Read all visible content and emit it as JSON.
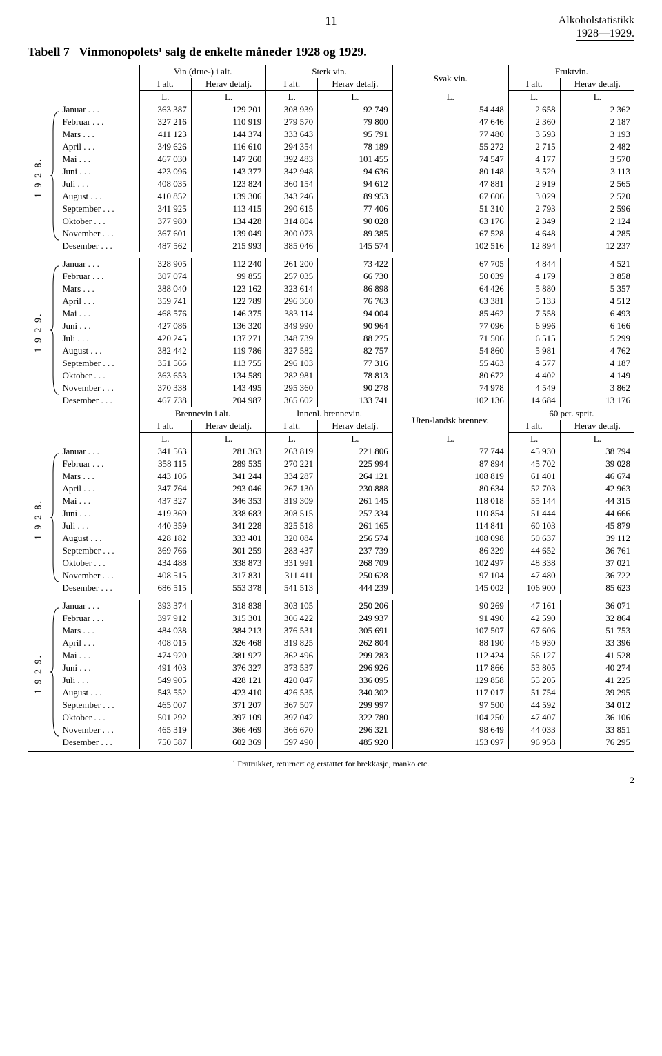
{
  "page": {
    "page_number_top": "11",
    "publication": "Alkoholstatistikk",
    "publication_years": "1928—1929.",
    "bottom_number": "2"
  },
  "table_title": {
    "label": "Tabell 7",
    "text": "Vinmonopolets¹ salg de enkelte måneder 1928 og 1929."
  },
  "section1": {
    "header": {
      "group1": "Vin (drue-) i alt.",
      "group2": "Sterk vin.",
      "group3": "Svak vin.",
      "group4": "Fruktvin.",
      "sub_ialt": "I alt.",
      "sub_herav": "Herav detalj."
    },
    "unit": "L.",
    "years": [
      "1 9 2 8.",
      "1 9 2 9."
    ],
    "months": [
      "Januar",
      "Februar",
      "Mars",
      "April",
      "Mai",
      "Juni",
      "Juli",
      "August",
      "September",
      "Oktober",
      "November",
      "Desember"
    ],
    "rows_1928": [
      [
        "363 387",
        "129 201",
        "308 939",
        "92 749",
        "54 448",
        "2 658",
        "2 362"
      ],
      [
        "327 216",
        "110 919",
        "279 570",
        "79 800",
        "47 646",
        "2 360",
        "2 187"
      ],
      [
        "411 123",
        "144 374",
        "333 643",
        "95 791",
        "77 480",
        "3 593",
        "3 193"
      ],
      [
        "349 626",
        "116 610",
        "294 354",
        "78 189",
        "55 272",
        "2 715",
        "2 482"
      ],
      [
        "467 030",
        "147 260",
        "392 483",
        "101 455",
        "74 547",
        "4 177",
        "3 570"
      ],
      [
        "423 096",
        "143 377",
        "342 948",
        "94 636",
        "80 148",
        "3 529",
        "3 113"
      ],
      [
        "408 035",
        "123 824",
        "360 154",
        "94 612",
        "47 881",
        "2 919",
        "2 565"
      ],
      [
        "410 852",
        "139 306",
        "343 246",
        "89 953",
        "67 606",
        "3 029",
        "2 520"
      ],
      [
        "341 925",
        "113 415",
        "290 615",
        "77 406",
        "51 310",
        "2 793",
        "2 596"
      ],
      [
        "377 980",
        "134 428",
        "314 804",
        "90 028",
        "63 176",
        "2 349",
        "2 124"
      ],
      [
        "367 601",
        "139 049",
        "300 073",
        "89 385",
        "67 528",
        "4 648",
        "4 285"
      ],
      [
        "487 562",
        "215 993",
        "385 046",
        "145 574",
        "102 516",
        "12 894",
        "12 237"
      ]
    ],
    "rows_1929": [
      [
        "328 905",
        "112 240",
        "261 200",
        "73 422",
        "67 705",
        "4 844",
        "4 521"
      ],
      [
        "307 074",
        "99 855",
        "257 035",
        "66 730",
        "50 039",
        "4 179",
        "3 858"
      ],
      [
        "388 040",
        "123 162",
        "323 614",
        "86 898",
        "64 426",
        "5 880",
        "5 357"
      ],
      [
        "359 741",
        "122 789",
        "296 360",
        "76 763",
        "63 381",
        "5 133",
        "4 512"
      ],
      [
        "468 576",
        "146 375",
        "383 114",
        "94 004",
        "85 462",
        "7 558",
        "6 493"
      ],
      [
        "427 086",
        "136 320",
        "349 990",
        "90 964",
        "77 096",
        "6 996",
        "6 166"
      ],
      [
        "420 245",
        "137 271",
        "348 739",
        "88 275",
        "71 506",
        "6 515",
        "5 299"
      ],
      [
        "382 442",
        "119 786",
        "327 582",
        "82 757",
        "54 860",
        "5 981",
        "4 762"
      ],
      [
        "351 566",
        "113 755",
        "296 103",
        "77 316",
        "55 463",
        "4 577",
        "4 187"
      ],
      [
        "363 653",
        "134 589",
        "282 981",
        "78 813",
        "80 672",
        "4 402",
        "4 149"
      ],
      [
        "370 338",
        "143 495",
        "295 360",
        "90 278",
        "74 978",
        "4 549",
        "3 862"
      ],
      [
        "467 738",
        "204 987",
        "365 602",
        "133 741",
        "102 136",
        "14 684",
        "13 176"
      ]
    ]
  },
  "section2": {
    "header": {
      "group1": "Brennevin i alt.",
      "group2": "Innenl. brennevin.",
      "group3": "Uten-landsk brennev.",
      "group4": "60 pct. sprit.",
      "sub_ialt": "I alt.",
      "sub_herav": "Herav detalj."
    },
    "unit": "L.",
    "years": [
      "1 9 2 8.",
      "1 9 2 9."
    ],
    "months": [
      "Januar",
      "Februar",
      "Mars",
      "April",
      "Mai",
      "Juni",
      "Juli",
      "August",
      "September",
      "Oktober",
      "November",
      "Desember"
    ],
    "rows_1928": [
      [
        "341 563",
        "281 363",
        "263 819",
        "221 806",
        "77 744",
        "45 930",
        "38 794"
      ],
      [
        "358 115",
        "289 535",
        "270 221",
        "225 994",
        "87 894",
        "45 702",
        "39 028"
      ],
      [
        "443 106",
        "341 244",
        "334 287",
        "264 121",
        "108 819",
        "61 401",
        "46 674"
      ],
      [
        "347 764",
        "293 046",
        "267 130",
        "230 888",
        "80 634",
        "52 703",
        "42 963"
      ],
      [
        "437 327",
        "346 353",
        "319 309",
        "261 145",
        "118 018",
        "55 144",
        "44 315"
      ],
      [
        "419 369",
        "338 683",
        "308 515",
        "257 334",
        "110 854",
        "51 444",
        "44 666"
      ],
      [
        "440 359",
        "341 228",
        "325 518",
        "261 165",
        "114 841",
        "60 103",
        "45 879"
      ],
      [
        "428 182",
        "333 401",
        "320 084",
        "256 574",
        "108 098",
        "50 637",
        "39 112"
      ],
      [
        "369 766",
        "301 259",
        "283 437",
        "237 739",
        "86 329",
        "44 652",
        "36 761"
      ],
      [
        "434 488",
        "338 873",
        "331 991",
        "268 709",
        "102 497",
        "48 338",
        "37 021"
      ],
      [
        "408 515",
        "317 831",
        "311 411",
        "250 628",
        "97 104",
        "47 480",
        "36 722"
      ],
      [
        "686 515",
        "553 378",
        "541 513",
        "444 239",
        "145 002",
        "106 900",
        "85 623"
      ]
    ],
    "rows_1929": [
      [
        "393 374",
        "318 838",
        "303 105",
        "250 206",
        "90 269",
        "47 161",
        "36 071"
      ],
      [
        "397 912",
        "315 301",
        "306 422",
        "249 937",
        "91 490",
        "42 590",
        "32 864"
      ],
      [
        "484 038",
        "384 213",
        "376 531",
        "305 691",
        "107 507",
        "67 606",
        "51 753"
      ],
      [
        "408 015",
        "326 468",
        "319 825",
        "262 804",
        "88 190",
        "46 930",
        "33 396"
      ],
      [
        "474 920",
        "381 927",
        "362 496",
        "299 283",
        "112 424",
        "56 127",
        "41 528"
      ],
      [
        "491 403",
        "376 327",
        "373 537",
        "296 926",
        "117 866",
        "53 805",
        "40 274"
      ],
      [
        "549 905",
        "428 121",
        "420 047",
        "336 095",
        "129 858",
        "55 205",
        "41 225"
      ],
      [
        "543 552",
        "423 410",
        "426 535",
        "340 302",
        "117 017",
        "51 754",
        "39 295"
      ],
      [
        "465 007",
        "371 207",
        "367 507",
        "299 997",
        "97 500",
        "44 592",
        "34 012"
      ],
      [
        "501 292",
        "397 109",
        "397 042",
        "322 780",
        "104 250",
        "47 407",
        "36 106"
      ],
      [
        "465 319",
        "366 469",
        "366 670",
        "296 321",
        "98 649",
        "44 033",
        "33 851"
      ],
      [
        "750 587",
        "602 369",
        "597 490",
        "485 920",
        "153 097",
        "96 958",
        "76 295"
      ]
    ]
  },
  "footnote": "¹ Fratrukket, returnert og erstattet for brekkasje, manko etc."
}
